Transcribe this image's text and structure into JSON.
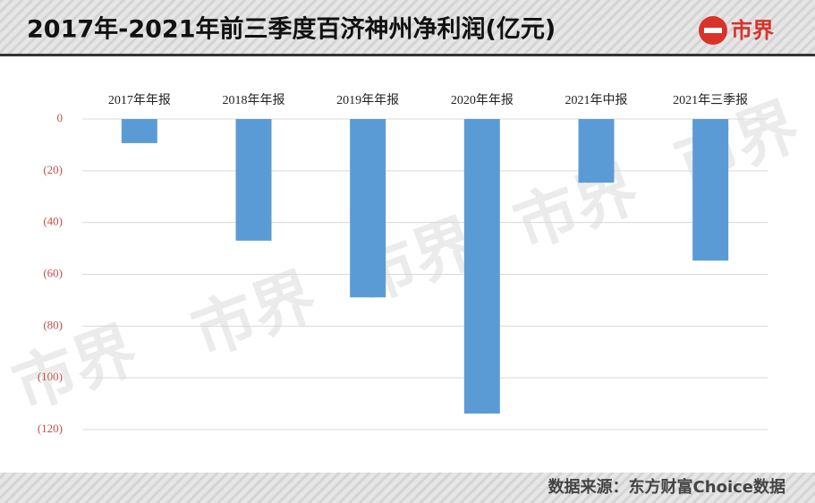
{
  "title": "2017年-2021年前三季度百济神州净利润(亿元)",
  "logo": "市界",
  "source": "数据来源：东方财富Choice数据",
  "chart_data": {
    "type": "bar",
    "categories": [
      "2017年年报",
      "2018年年报",
      "2019年年报",
      "2020年年报",
      "2021年中报",
      "2021年三季报"
    ],
    "values": [
      -9.3,
      -47,
      -68.9,
      -113.8,
      -24.6,
      -54.7
    ],
    "color": "#5b9bd5",
    "ylim": [
      -120,
      0
    ],
    "yticks": [
      0,
      {
        "value": -20,
        "label": "(20)"
      },
      {
        "value": -40,
        "label": "(40)"
      },
      {
        "value": -60,
        "label": "(60)"
      },
      {
        "value": -80,
        "label": "(80)"
      },
      {
        "value": -100,
        "label": "(100)"
      },
      {
        "value": -120,
        "label": "(120)"
      }
    ],
    "grid": true
  }
}
